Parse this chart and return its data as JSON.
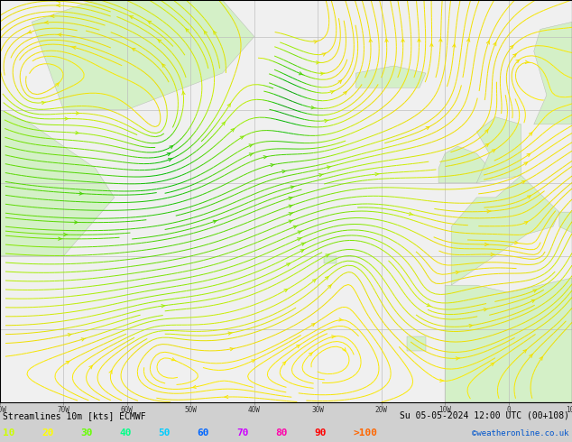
{
  "title_left": "Streamlines 10m [kts] ECMWF",
  "title_right": "Su 05-05-2024 12:00 UTC (00+108)",
  "watermark": "©weatheronline.co.uk",
  "legend_labels": [
    "10",
    "20",
    "30",
    "40",
    "50",
    "60",
    "70",
    "80",
    "90",
    ">100"
  ],
  "legend_colors": [
    "#ccff00",
    "#ffff00",
    "#66ff00",
    "#00ff88",
    "#00ccff",
    "#0066ff",
    "#cc00ff",
    "#ff00aa",
    "#ff0000",
    "#ff6600"
  ],
  "sea_color": "#f0f0f0",
  "land_color": "#d0f0c0",
  "coast_color": "#aaaaaa",
  "grid_color": "#bbbbbb",
  "streamline_color_slow": "#ffdd00",
  "streamline_color_medium": "#aaee00",
  "streamline_color_fast": "#00cc00",
  "streamline_color_vfast": "#009900",
  "figsize": [
    6.34,
    4.9
  ],
  "dpi": 100,
  "bottom_bar_color": "#d0d0d0",
  "text_color": "#000000",
  "lon_min": -80,
  "lon_max": 10,
  "lat_min": 20,
  "lat_max": 75
}
